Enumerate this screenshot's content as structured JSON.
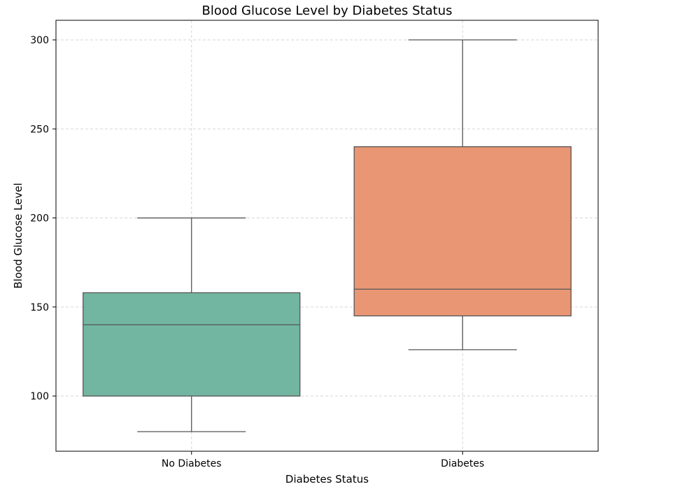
{
  "chart_data": {
    "type": "box",
    "title": "Blood Glucose Level by Diabetes Status",
    "xlabel": "Diabetes Status",
    "ylabel": "Blood Glucose Level",
    "ylim": [
      69,
      311
    ],
    "yticks": [
      100,
      150,
      200,
      250,
      300
    ],
    "grid": true,
    "categories": [
      "No Diabetes",
      "Diabetes"
    ],
    "boxes": [
      {
        "category": "No Diabetes",
        "whisker_low": 80,
        "q1": 100,
        "median": 140,
        "q3": 158,
        "whisker_high": 200,
        "color": "#72b6a1"
      },
      {
        "category": "Diabetes",
        "whisker_low": 126,
        "q1": 145,
        "median": 160,
        "q3": 240,
        "whisker_high": 300,
        "color": "#e99675"
      }
    ],
    "colors": {
      "edge": "#555555",
      "grid": "#d6d6d6",
      "frame": "#000000"
    }
  }
}
